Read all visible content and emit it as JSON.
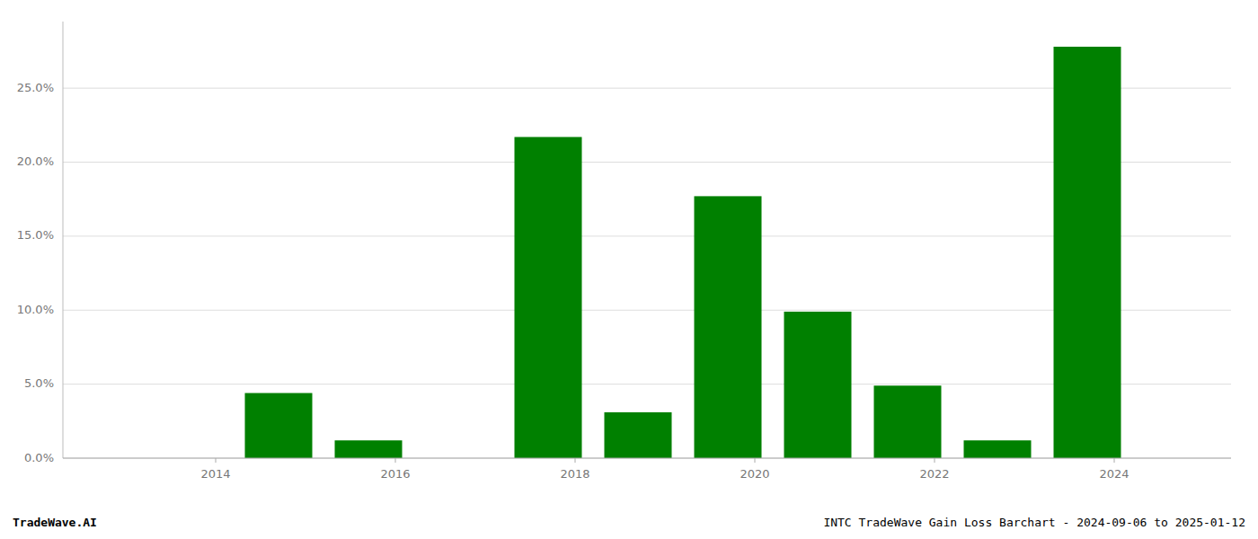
{
  "chart_data": {
    "type": "bar",
    "title": "INTC TradeWave Gain Loss Barchart - 2024-09-06 to 2025-01-12",
    "annotations": [
      "TradeWave.AI"
    ],
    "x": [
      2014.7,
      2015.7,
      2017.7,
      2018.7,
      2019.7,
      2020.7,
      2021.7,
      2022.7,
      2023.7
    ],
    "values": [
      0.044,
      0.012,
      0.217,
      0.031,
      0.177,
      0.099,
      0.049,
      0.012,
      0.278
    ],
    "color": "#008000",
    "xlim": [
      2012.3,
      2025.3
    ],
    "xticks": [
      2014,
      2016,
      2018,
      2020,
      2022,
      2024
    ],
    "ylim": [
      0,
      0.295
    ],
    "yticks": [
      {
        "value": 0.0,
        "label": "0.0%"
      },
      {
        "value": 0.05,
        "label": "5.0%"
      },
      {
        "value": 0.1,
        "label": "10.0%"
      },
      {
        "value": 0.15,
        "label": "15.0%"
      },
      {
        "value": 0.2,
        "label": "20.0%"
      },
      {
        "value": 0.25,
        "label": "25.0%"
      }
    ],
    "grid": true
  }
}
